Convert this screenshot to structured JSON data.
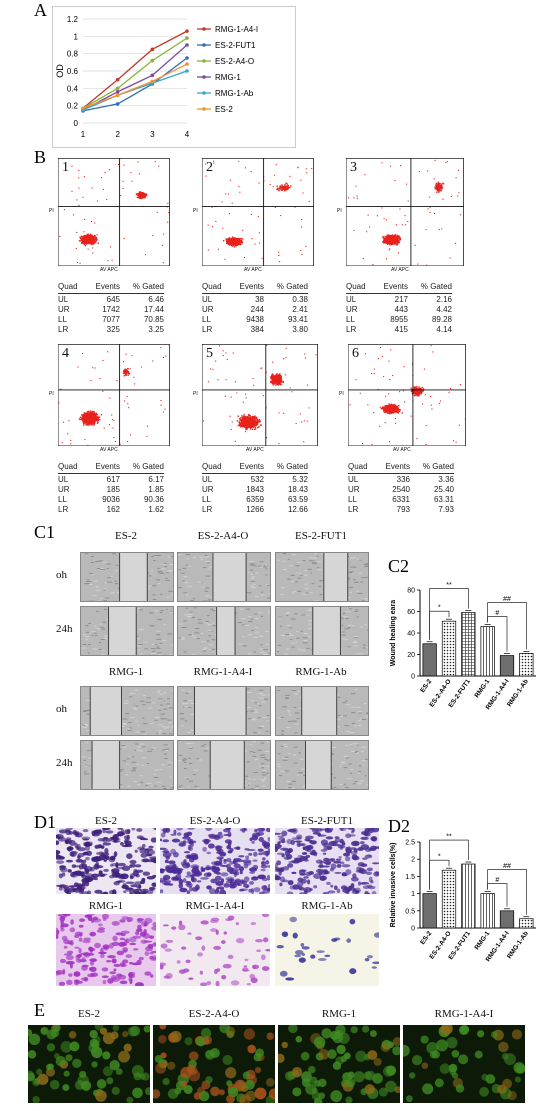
{
  "panel_labels": {
    "a": "A",
    "b": "B",
    "c1": "C1",
    "c2": "C2",
    "d1": "D1",
    "d2": "D2",
    "e": "E"
  },
  "panel_a": {
    "ylabel": "OD",
    "legend": [
      "RMG-1-A4-I",
      "ES-2-FUT1",
      "ES-2-A4-O",
      "RMG-1",
      "RMG-1-Ab",
      "ES-2"
    ]
  },
  "panel_b": {
    "plot_numbers": [
      "1",
      "2",
      "3",
      "4",
      "5",
      "6"
    ],
    "axis_x": "AV APC",
    "axis_y": "PI",
    "table_header": [
      "Quad",
      "Events",
      "% Gated"
    ],
    "tables": [
      [
        [
          "UL",
          "645",
          "6.46"
        ],
        [
          "UR",
          "1742",
          "17.44"
        ],
        [
          "LL",
          "7077",
          "70.85"
        ],
        [
          "LR",
          "325",
          "3.25"
        ]
      ],
      [
        [
          "UL",
          "38",
          "0.38"
        ],
        [
          "UR",
          "244",
          "2.41"
        ],
        [
          "LL",
          "9438",
          "93.41"
        ],
        [
          "LR",
          "384",
          "3.80"
        ]
      ],
      [
        [
          "UL",
          "217",
          "2.16"
        ],
        [
          "UR",
          "443",
          "4.42"
        ],
        [
          "LL",
          "8955",
          "89.28"
        ],
        [
          "LR",
          "415",
          "4.14"
        ]
      ],
      [
        [
          "UL",
          "617",
          "6.17"
        ],
        [
          "UR",
          "185",
          "1.85"
        ],
        [
          "LL",
          "9036",
          "90.36"
        ],
        [
          "LR",
          "162",
          "1.62"
        ]
      ],
      [
        [
          "UL",
          "532",
          "5.32"
        ],
        [
          "UR",
          "1843",
          "18.43"
        ],
        [
          "LL",
          "6359",
          "63.59"
        ],
        [
          "LR",
          "1266",
          "12.66"
        ]
      ],
      [
        [
          "UL",
          "336",
          "3.36"
        ],
        [
          "UR",
          "2540",
          "25.40"
        ],
        [
          "LL",
          "6331",
          "63.31"
        ],
        [
          "LR",
          "793",
          "7.93"
        ]
      ]
    ]
  },
  "panel_c1": {
    "top_titles": [
      "ES-2",
      "ES-2-A4-O",
      "ES-2-FUT1"
    ],
    "bottom_titles": [
      "RMG-1",
      "RMG-1-A4-I",
      "RMG-1-Ab"
    ],
    "row_labels": [
      "oh",
      "24h",
      "oh",
      "24h"
    ]
  },
  "panel_d1": {
    "top_titles": [
      "ES-2",
      "ES-2-A4-O",
      "ES-2-FUT1"
    ],
    "bottom_titles": [
      "RMG-1",
      "RMG-1-A4-I",
      "RMG-1-Ab"
    ]
  },
  "panel_e": {
    "titles": [
      "ES-2",
      "ES-2-A4-O",
      "RMG-1",
      "RMG-1-A4-I"
    ]
  },
  "colors": {
    "scatter_red": "#e8221b",
    "purple_stain": "#5a2a9a",
    "magenta_stain": "#b03cc8"
  },
  "chart_data": [
    {
      "type": "line",
      "x": [
        1,
        2,
        3,
        4
      ],
      "ylabel": "OD",
      "ylim": [
        0,
        1.2
      ],
      "yticks": [
        0,
        0.2,
        0.4,
        0.6,
        0.8,
        1,
        1.2
      ],
      "legend_position": "right",
      "series": [
        {
          "name": "RMG-1-A4-I",
          "color": "#c0392b",
          "values": [
            0.17,
            0.5,
            0.85,
            1.06
          ]
        },
        {
          "name": "ES-2-FUT1",
          "color": "#2f6db5",
          "values": [
            0.14,
            0.22,
            0.45,
            0.75
          ]
        },
        {
          "name": "ES-2-A4-O",
          "color": "#8bb33a",
          "values": [
            0.17,
            0.4,
            0.72,
            0.98
          ]
        },
        {
          "name": "RMG-1",
          "color": "#7a4aa0",
          "values": [
            0.15,
            0.36,
            0.55,
            0.9
          ]
        },
        {
          "name": "RMG-1-Ab",
          "color": "#3aa6c9",
          "values": [
            0.15,
            0.32,
            0.46,
            0.6
          ]
        },
        {
          "name": "ES-2",
          "color": "#f0922e",
          "values": [
            0.17,
            0.32,
            0.48,
            0.68
          ]
        }
      ]
    },
    {
      "type": "bar",
      "ylabel": "Wound healing eara",
      "ylim": [
        0,
        80
      ],
      "yticks": [
        0,
        20,
        40,
        60,
        80
      ],
      "categories": [
        "ES-2",
        "ES-2-A4-O",
        "ES-2-FUT1",
        "RMG-1",
        "RMG-1-A4-I",
        "RMG-1-Ab"
      ],
      "values": [
        30,
        51,
        59,
        46,
        19,
        21
      ],
      "annotations": [
        "*",
        "**",
        "#",
        "##"
      ]
    },
    {
      "type": "bar",
      "ylabel": "Relative invasive cells(%)",
      "ylim": [
        0,
        2.5
      ],
      "yticks": [
        0.0,
        0.5,
        1.0,
        1.5,
        2.0,
        2.5
      ],
      "categories": [
        "ES-2",
        "ES-2-A4-O",
        "ES-2-FUT1",
        "RMG-1",
        "RMG-1-A4-I",
        "RMG-1-Ab"
      ],
      "values": [
        1.0,
        1.68,
        1.86,
        1.0,
        0.5,
        0.27
      ],
      "annotations": [
        "*",
        "**",
        "#",
        "##"
      ]
    }
  ]
}
